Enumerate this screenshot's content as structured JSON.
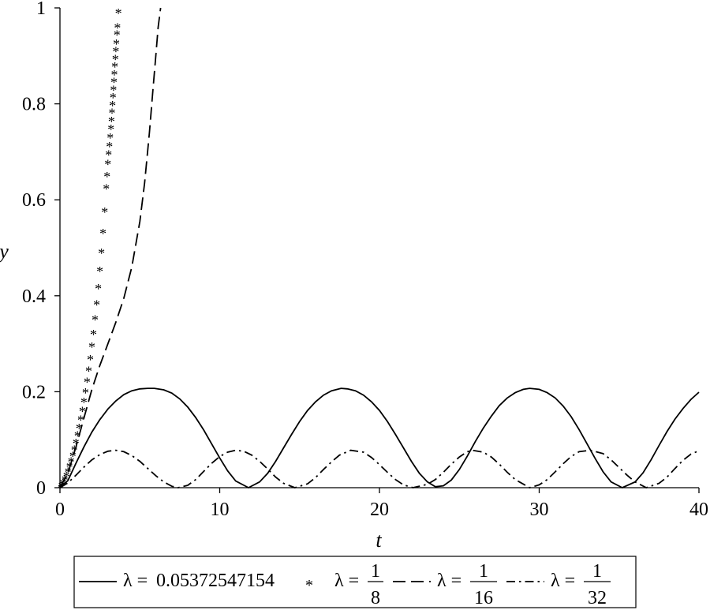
{
  "chart_data": {
    "type": "line",
    "xlabel": "t",
    "ylabel": "y",
    "xlim": [
      0,
      40
    ],
    "ylim": [
      0,
      1
    ],
    "xticks": [
      0,
      10,
      20,
      30,
      40
    ],
    "yticks": [
      0,
      0.2,
      0.4,
      0.6,
      0.8,
      1
    ],
    "ytick_labels": [
      "0",
      "0.2",
      "0.4",
      "0.6",
      "0.8",
      "1"
    ],
    "grid": false,
    "legend_position": "bottom",
    "series": [
      {
        "name": "λ = 0.05372547154",
        "label_prefix": "λ = ",
        "label_value": "0.05372547154",
        "style": "solid",
        "x": [
          0,
          0.5,
          1,
          1.5,
          2,
          2.5,
          3,
          3.5,
          4,
          4.5,
          5,
          5.5,
          5.9,
          6.5,
          7,
          7.5,
          8,
          8.5,
          9,
          9.5,
          10,
          10.5,
          11,
          11.8,
          12.5,
          13,
          13.5,
          14,
          14.5,
          15,
          15.5,
          16,
          16.5,
          17,
          17.6,
          18,
          18.5,
          19,
          19.5,
          20,
          20.5,
          21,
          21.5,
          22,
          22.5,
          23,
          23.5,
          24,
          24.5,
          25,
          25.5,
          26,
          26.5,
          27,
          27.5,
          28,
          28.5,
          29,
          29.4,
          30,
          30.5,
          31,
          31.5,
          32,
          32.5,
          33,
          33.5,
          34,
          34.5,
          35.2,
          36,
          36.5,
          37,
          37.5,
          38,
          38.5,
          39,
          39.5,
          40
        ],
        "y": [
          0,
          0.015,
          0.051,
          0.085,
          0.116,
          0.142,
          0.164,
          0.181,
          0.194,
          0.202,
          0.206,
          0.207,
          0.207,
          0.204,
          0.197,
          0.185,
          0.168,
          0.146,
          0.12,
          0.091,
          0.062,
          0.035,
          0.014,
          0,
          0.012,
          0.03,
          0.055,
          0.083,
          0.111,
          0.138,
          0.161,
          0.179,
          0.193,
          0.202,
          0.207,
          0.206,
          0.202,
          0.193,
          0.179,
          0.161,
          0.138,
          0.111,
          0.083,
          0.055,
          0.03,
          0.012,
          0.002,
          0.004,
          0.016,
          0.038,
          0.066,
          0.096,
          0.124,
          0.149,
          0.171,
          0.187,
          0.198,
          0.205,
          0.207,
          0.205,
          0.198,
          0.187,
          0.17,
          0.148,
          0.121,
          0.091,
          0.061,
          0.033,
          0.012,
          0,
          0.012,
          0.031,
          0.058,
          0.088,
          0.117,
          0.143,
          0.165,
          0.184,
          0.199
        ]
      },
      {
        "name": "λ = 1/8",
        "label_prefix": "λ = ",
        "label_num": "1",
        "label_den": "8",
        "style": "star",
        "x": [
          0,
          0.1,
          0.2,
          0.3,
          0.4,
          0.5,
          0.6,
          0.7,
          0.8,
          0.9,
          1,
          1.1,
          1.2,
          1.3,
          1.4,
          1.5,
          1.6,
          1.7,
          1.8,
          1.9,
          2,
          2.1,
          2.2,
          2.3,
          2.4,
          2.5,
          2.6,
          2.7,
          2.8,
          2.9,
          2.95,
          3,
          3.05,
          3.1,
          3.15,
          3.2,
          3.23,
          3.26,
          3.29,
          3.32,
          3.35,
          3.38,
          3.41,
          3.44,
          3.47,
          3.5,
          3.53,
          3.57,
          3.6,
          3.66
        ],
        "y": [
          0,
          0.004,
          0.01,
          0.017,
          0.025,
          0.034,
          0.044,
          0.055,
          0.067,
          0.08,
          0.094,
          0.109,
          0.125,
          0.142,
          0.16,
          0.179,
          0.199,
          0.221,
          0.244,
          0.268,
          0.294,
          0.321,
          0.351,
          0.382,
          0.416,
          0.452,
          0.49,
          0.531,
          0.576,
          0.624,
          0.65,
          0.675,
          0.695,
          0.712,
          0.73,
          0.748,
          0.765,
          0.782,
          0.798,
          0.814,
          0.83,
          0.846,
          0.862,
          0.878,
          0.894,
          0.91,
          0.926,
          0.945,
          0.96,
          0.99
        ]
      },
      {
        "name": "λ = 1/16",
        "label_prefix": "λ = ",
        "label_num": "1",
        "label_den": "16",
        "style": "dash",
        "x": [
          0,
          0.5,
          1,
          1.5,
          2,
          2.5,
          3,
          3.5,
          4,
          4.5,
          5,
          5.3,
          5.6,
          5.8,
          6,
          6.15,
          6.3
        ],
        "y": [
          0,
          0.03,
          0.085,
          0.145,
          0.205,
          0.255,
          0.3,
          0.345,
          0.395,
          0.46,
          0.555,
          0.635,
          0.74,
          0.82,
          0.9,
          0.96,
          1
        ]
      },
      {
        "name": "λ = 1/32",
        "label_prefix": "λ = ",
        "label_num": "1",
        "label_den": "32",
        "style": "dashdot",
        "x": [
          0,
          0.5,
          1,
          1.5,
          2,
          2.5,
          3,
          3.5,
          4,
          4.5,
          5,
          5.5,
          6,
          6.5,
          7,
          7.4,
          8,
          8.5,
          9,
          9.5,
          10,
          10.5,
          11,
          11.5,
          12,
          12.5,
          13,
          13.5,
          14,
          14.7,
          15.5,
          16,
          16.5,
          17,
          17.5,
          18.2,
          19,
          19.5,
          20,
          20.5,
          21,
          21.5,
          22.1,
          23,
          23.5,
          24,
          24.5,
          25,
          25.5,
          25.8,
          26.5,
          27,
          27.5,
          28,
          28.5,
          29.4,
          30,
          30.5,
          31,
          31.5,
          32,
          32.5,
          33.2,
          34,
          34.5,
          35,
          35.5,
          36,
          36.7,
          37.5,
          38,
          38.5,
          39,
          39.5,
          40
        ],
        "y": [
          0,
          0.01,
          0.026,
          0.043,
          0.058,
          0.069,
          0.076,
          0.078,
          0.075,
          0.067,
          0.055,
          0.04,
          0.025,
          0.012,
          0.003,
          0,
          0.005,
          0.017,
          0.034,
          0.051,
          0.065,
          0.074,
          0.078,
          0.076,
          0.068,
          0.055,
          0.039,
          0.022,
          0.009,
          0,
          0.008,
          0.021,
          0.038,
          0.054,
          0.068,
          0.078,
          0.074,
          0.063,
          0.048,
          0.032,
          0.017,
          0.006,
          0,
          0.007,
          0.017,
          0.032,
          0.049,
          0.064,
          0.075,
          0.078,
          0.074,
          0.064,
          0.049,
          0.032,
          0.017,
          0,
          0.006,
          0.017,
          0.033,
          0.05,
          0.065,
          0.075,
          0.078,
          0.071,
          0.058,
          0.042,
          0.026,
          0.012,
          0,
          0.009,
          0.022,
          0.04,
          0.057,
          0.07,
          0.077
        ]
      }
    ]
  }
}
